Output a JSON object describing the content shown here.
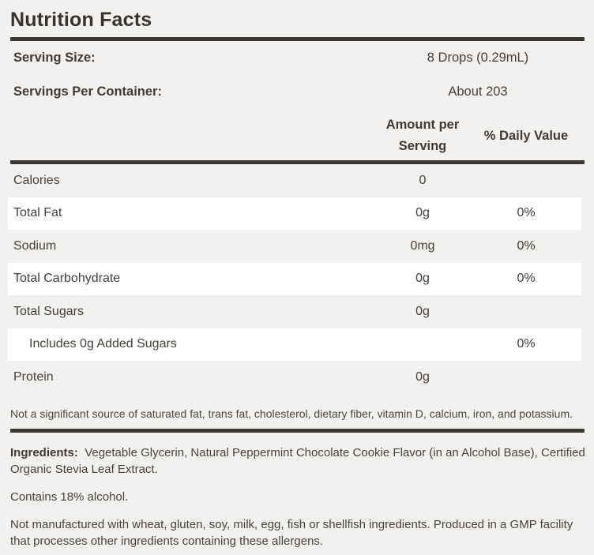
{
  "panel": {
    "title": "Nutrition Facts",
    "serving_rows": [
      {
        "label": "Serving Size:",
        "value": "8 Drops (0.29mL)"
      },
      {
        "label": "Servings Per Container:",
        "value": "About 203"
      }
    ],
    "columns": {
      "amount_line1": "Amount per",
      "amount_line2": "Serving",
      "daily_value": "% Daily Value"
    },
    "rows": [
      {
        "label": "Calories",
        "amount": "0",
        "dv": "",
        "indent": false
      },
      {
        "label": "Total Fat",
        "amount": "0g",
        "dv": "0%",
        "indent": false
      },
      {
        "label": "Sodium",
        "amount": "0mg",
        "dv": "0%",
        "indent": false
      },
      {
        "label": "Total Carbohydrate",
        "amount": "0g",
        "dv": "0%",
        "indent": false
      },
      {
        "label": "Total Sugars",
        "amount": "0g",
        "dv": "",
        "indent": false
      },
      {
        "label": "Includes 0g Added Sugars",
        "amount": "",
        "dv": "0%",
        "indent": true
      },
      {
        "label": "Protein",
        "amount": "0g",
        "dv": "",
        "indent": false
      }
    ],
    "footnote": "Not a significant source of saturated fat, trans fat, cholesterol, dietary fiber, vitamin D, calcium, iron, and potassium.",
    "ingredients_label": "Ingredients:",
    "ingredients_text": "Vegetable Glycerin, Natural Peppermint Chocolate Cookie Flavor (in an Alcohol Base), Certified Organic Stevia Leaf Extract.",
    "alcohol_note": "Contains 18% alcohol.",
    "allergen_note": "Not manufactured with wheat, gluten, soy, milk, egg, fish or shellfish ingredients. Produced in a GMP facility that processes other ingredients containing these allergens."
  },
  "colors": {
    "background": "#f2f1ef",
    "row_alt": "#ffffff",
    "text_dark": "#37322b",
    "text_body": "#47433e",
    "rule": "#3a3732"
  }
}
